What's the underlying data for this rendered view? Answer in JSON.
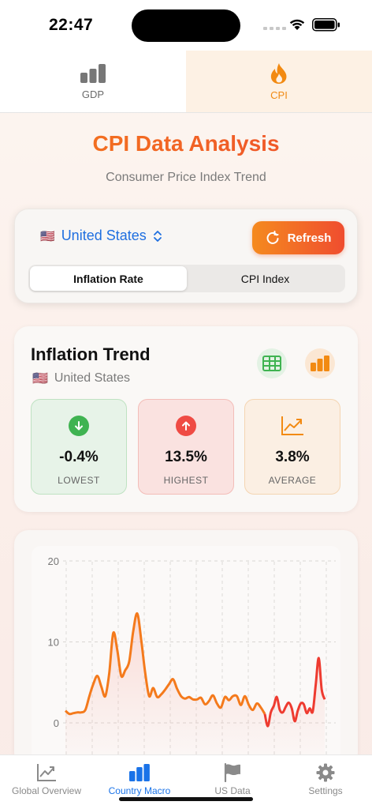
{
  "status_bar": {
    "time": "22:47"
  },
  "top_tabs": [
    {
      "label": "GDP",
      "icon": "bar-chart-icon",
      "active": false
    },
    {
      "label": "CPI",
      "icon": "flame-icon",
      "active": true
    }
  ],
  "header": {
    "title": "CPI Data Analysis",
    "subtitle": "Consumer Price Index Trend"
  },
  "controls": {
    "country_flag": "🇺🇸",
    "country": "United States",
    "refresh_label": "Refresh",
    "segments": [
      "Inflation Rate",
      "CPI Index"
    ],
    "selected_segment": "Inflation Rate"
  },
  "trend": {
    "title": "Inflation Trend",
    "country_flag": "🇺🇸",
    "country": "United States",
    "stats": {
      "lowest": {
        "value": "-0.4%",
        "caption": "LOWEST"
      },
      "highest": {
        "value": "13.5%",
        "caption": "HIGHEST"
      },
      "average": {
        "value": "3.8%",
        "caption": "AVERAGE"
      }
    }
  },
  "chart_data": {
    "type": "line",
    "y_ticks": [
      "20",
      "10",
      "0"
    ],
    "ylim": [
      -2,
      20
    ],
    "grid": true,
    "series": [
      {
        "values": [
          1.5,
          1.1,
          1.2,
          1.3,
          1.3,
          1.6,
          3.3,
          4.8,
          5.8,
          4.5,
          3.3,
          6.2,
          11.1,
          9.0,
          5.8,
          6.5,
          7.6,
          11.3,
          13.5,
          10.3,
          6.2,
          3.3,
          4.3,
          3.2,
          3.5,
          4.1,
          4.8,
          5.4,
          4.2,
          3.3,
          3.0,
          3.2,
          2.9,
          2.9,
          3.1,
          2.3,
          2.7,
          3.4,
          2.4,
          1.9,
          3.2,
          2.8,
          3.3,
          3.3,
          2.2,
          3.3,
          2.2,
          1.6,
          2.4,
          1.9,
          1.1
        ],
        "color": "#f47a1c"
      },
      {
        "values": [
          1.1,
          -0.4,
          1.3,
          2.1,
          3.2,
          1.6,
          1.3,
          2.0,
          2.5,
          1.8,
          0.2,
          1.5,
          2.4,
          2.3,
          1.2,
          1.8,
          1.4,
          4.7,
          8.0,
          4.1,
          2.9
        ],
        "color": "#ee3b30"
      }
    ]
  },
  "tab_bar": [
    {
      "label": "Global Overview",
      "icon": "line-chart-icon",
      "active": false
    },
    {
      "label": "Country Macro",
      "icon": "bar-chart-icon",
      "active": true
    },
    {
      "label": "US Data",
      "icon": "flag-icon",
      "active": false
    },
    {
      "label": "Settings",
      "icon": "gear-icon",
      "active": false
    }
  ]
}
